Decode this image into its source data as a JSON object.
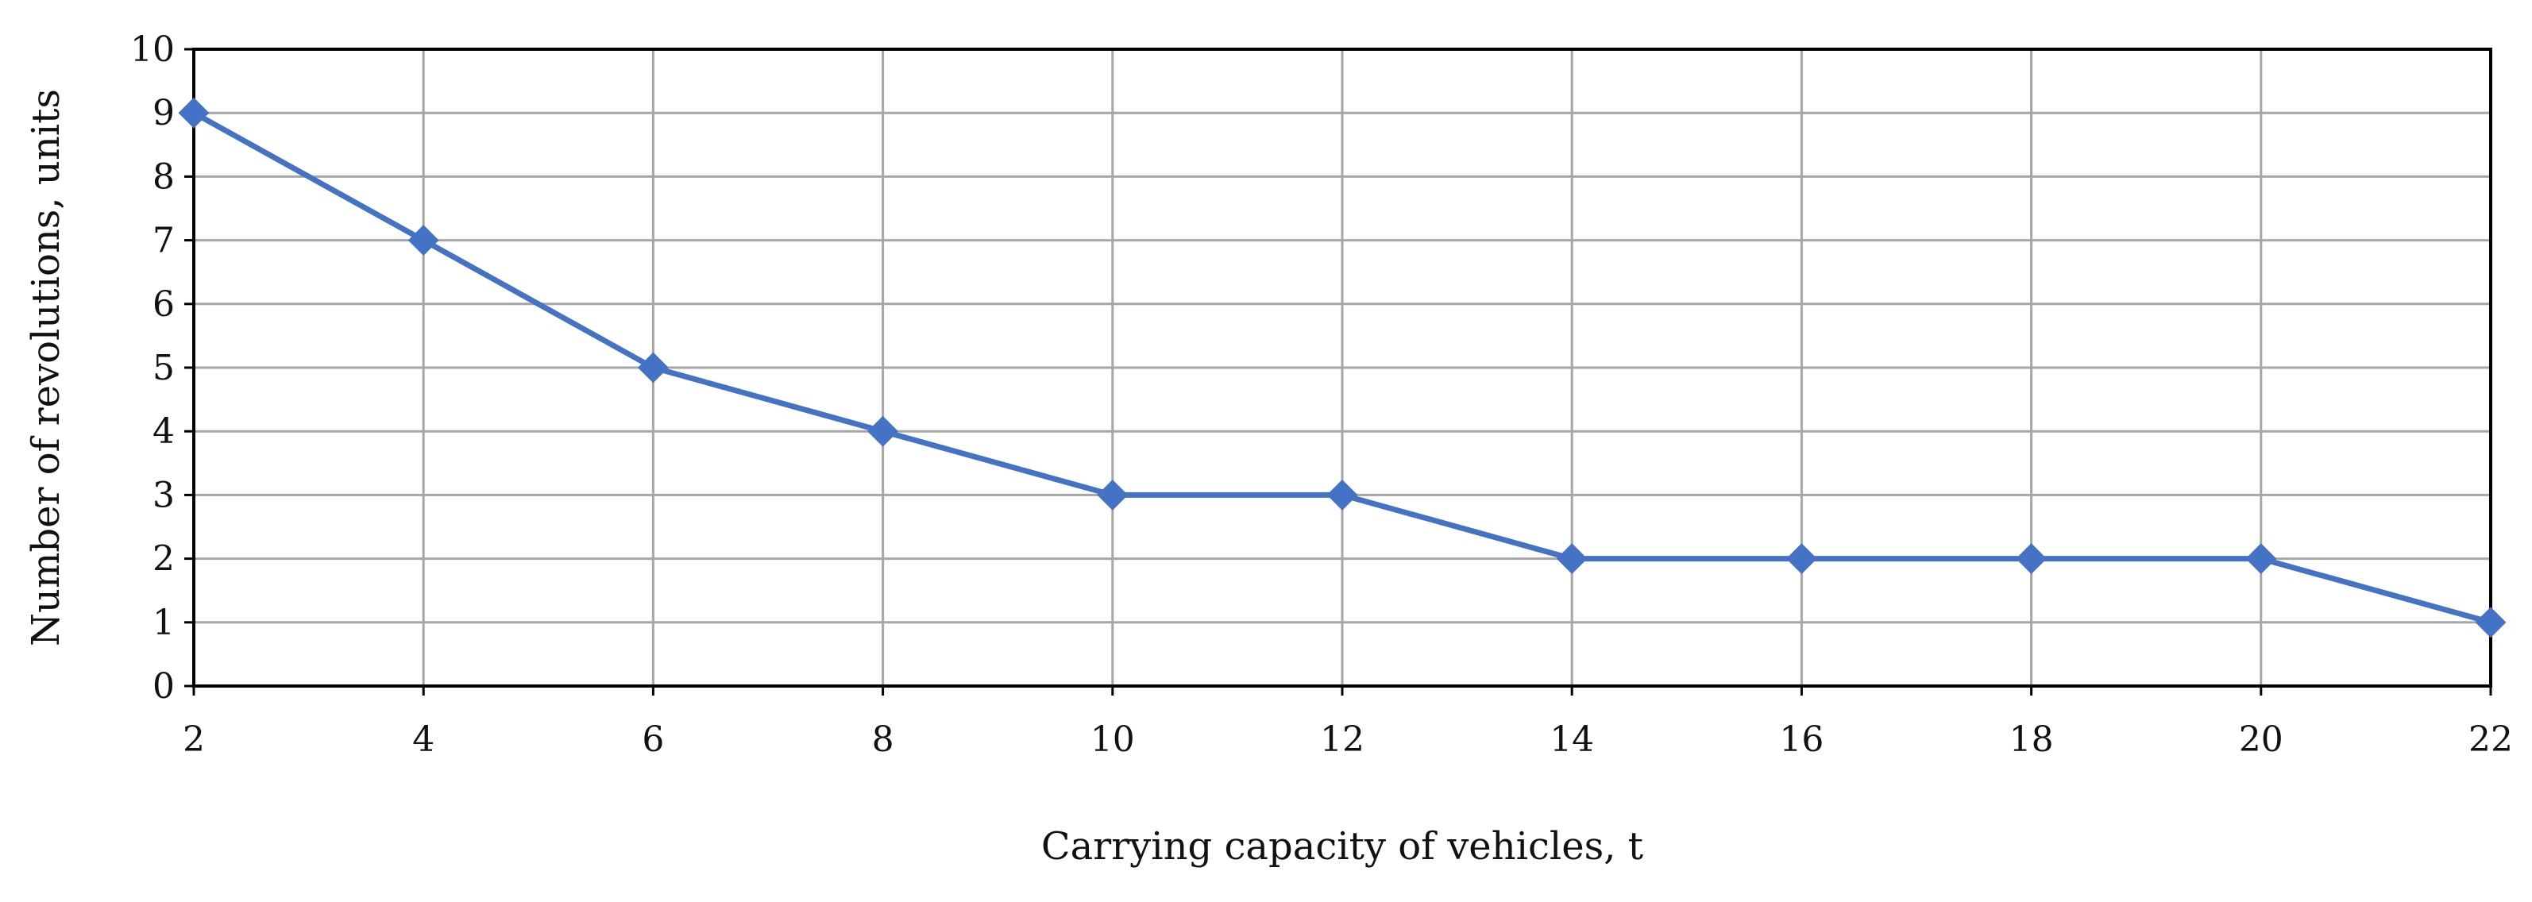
{
  "chart_data": {
    "type": "line",
    "title": "",
    "xlabel": "Carrying capacity of vehicles, t",
    "ylabel": "Number of revolutions, units",
    "x": [
      2,
      4,
      6,
      8,
      10,
      12,
      14,
      16,
      18,
      20,
      22
    ],
    "series": [
      {
        "values": [
          9,
          7,
          5,
          4,
          3,
          3,
          2,
          2,
          2,
          2,
          1
        ],
        "color": "#4472c4",
        "marker": "diamond"
      }
    ],
    "xlim": [
      2,
      22
    ],
    "ylim": [
      0,
      10
    ],
    "x_ticks": [
      2,
      4,
      6,
      8,
      10,
      12,
      14,
      16,
      18,
      20,
      22
    ],
    "y_ticks": [
      0,
      1,
      2,
      3,
      4,
      5,
      6,
      7,
      8,
      9,
      10
    ],
    "grid": true,
    "legend": "none"
  }
}
